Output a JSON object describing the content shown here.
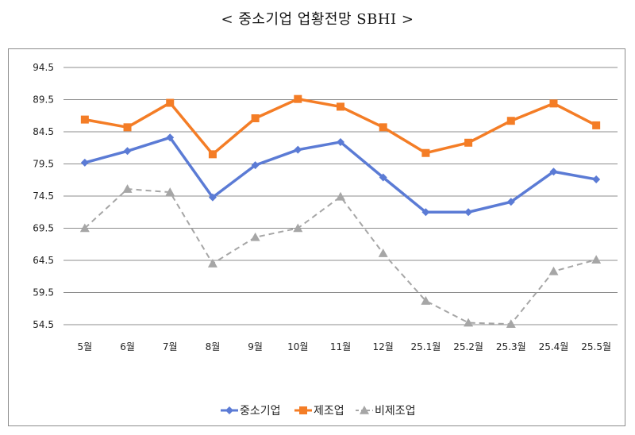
{
  "title": "< 중소기업 업황전망 SBHI >",
  "chart_data": {
    "type": "line",
    "title": "< 중소기업 업황전망 SBHI >",
    "categories": [
      "5월",
      "6월",
      "7월",
      "8월",
      "9월",
      "10월",
      "11월",
      "12월",
      "25.1월",
      "25.2월",
      "25.3월",
      "25.4월",
      "25.5월"
    ],
    "series": [
      {
        "name": "중소기업",
        "color": "#5b7bd5",
        "marker": "diamond",
        "dash": "solid",
        "values": [
          79.7,
          81.5,
          83.6,
          74.3,
          79.3,
          81.7,
          82.9,
          77.4,
          72.0,
          72.0,
          73.6,
          78.3,
          77.1
        ]
      },
      {
        "name": "제조업",
        "color": "#f47d26",
        "marker": "square",
        "dash": "solid",
        "values": [
          86.4,
          85.2,
          89.0,
          81.0,
          86.6,
          89.6,
          88.4,
          85.2,
          81.2,
          82.8,
          86.2,
          88.9,
          85.5
        ]
      },
      {
        "name": "비제조업",
        "color": "#a6a6a6",
        "marker": "triangle",
        "dash": "dashed",
        "values": [
          69.5,
          75.6,
          75.1,
          64.0,
          68.1,
          69.5,
          74.4,
          65.6,
          58.2,
          54.8,
          54.6,
          62.8,
          64.6
        ]
      }
    ],
    "yticks": [
      "54.5",
      "59.5",
      "64.5",
      "69.5",
      "74.5",
      "79.5",
      "84.5",
      "89.5",
      "94.5"
    ],
    "ylim": [
      54.5,
      94.5
    ],
    "grid": true,
    "legend_position": "bottom"
  }
}
